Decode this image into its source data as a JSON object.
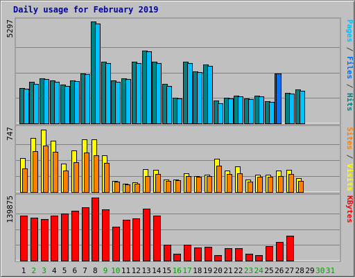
{
  "chart_data": {
    "type": "bar",
    "title": "Daily usage for February 2019",
    "days": [
      "1",
      "2",
      "3",
      "4",
      "5",
      "6",
      "7",
      "8",
      "9",
      "10",
      "11",
      "12",
      "13",
      "14",
      "15",
      "16",
      "17",
      "18",
      "19",
      "20",
      "21",
      "22",
      "23",
      "24",
      "25",
      "26",
      "27",
      "28",
      "29",
      "30",
      "31"
    ],
    "weekend_days": [
      "2",
      "3",
      "9",
      "10",
      "16",
      "17",
      "23",
      "24",
      "30",
      "31"
    ],
    "panels": [
      {
        "id": "top",
        "max_label": "5297",
        "ylim": [
          0,
          5297
        ],
        "right_label_parts": [
          "Pages",
          " / ",
          "Files",
          " / ",
          "Hits"
        ],
        "right_label_colors": [
          "#00c0ff",
          "#404040",
          "#0070ff",
          "#404040",
          "#008080"
        ],
        "series": [
          {
            "name": "Hits",
            "color": "#008080",
            "values": [
              1850,
              2150,
              2350,
              2250,
              2000,
              2250,
              2600,
              5300,
              3200,
              2250,
              2350,
              3200,
              3800,
              3200,
              2050,
              1350,
              3200,
              2700,
              3050,
              1200,
              1350,
              1450,
              1300,
              1450,
              1150,
              2600,
              1600,
              1750,
              0,
              0,
              0
            ]
          },
          {
            "name": "Files",
            "color": "#0070ff",
            "values": [
              0,
              0,
              0,
              0,
              0,
              0,
              0,
              0,
              0,
              0,
              0,
              0,
              0,
              0,
              0,
              0,
              0,
              0,
              0,
              0,
              0,
              0,
              0,
              0,
              0,
              2600,
              0,
              0,
              0,
              0,
              0
            ]
          },
          {
            "name": "Pages",
            "color": "#00c0ff",
            "values": [
              1800,
              2050,
              2300,
              2150,
              1950,
              2200,
              2550,
              5200,
              3150,
              2150,
              2300,
              3150,
              3750,
              3150,
              1950,
              1300,
              3150,
              2650,
              3000,
              1050,
              1300,
              1400,
              1250,
              1400,
              1100,
              0,
              1550,
              1700,
              0,
              0,
              0
            ]
          }
        ]
      },
      {
        "id": "middle",
        "max_label": "747",
        "ylim": [
          0,
          747
        ],
        "right_label_parts": [
          "Sites",
          " / ",
          "Visits"
        ],
        "right_label_colors": [
          "#ff8000",
          "#404040",
          "#ffff00"
        ],
        "series": [
          {
            "name": "Visits",
            "color": "#ffff00",
            "values": [
              400,
              630,
              730,
              600,
              330,
              490,
              620,
              620,
              430,
              130,
              100,
              110,
              270,
              260,
              150,
              150,
              220,
              190,
              200,
              390,
              250,
              300,
              150,
              200,
              200,
              250,
              260,
              160,
              0,
              0,
              0
            ]
          },
          {
            "name": "Sites",
            "color": "#ff8000",
            "values": [
              280,
              480,
              540,
              470,
              250,
              350,
              460,
              430,
              340,
              120,
              90,
              100,
              190,
              210,
              130,
              140,
              190,
              180,
              190,
              310,
              210,
              220,
              120,
              180,
              180,
              190,
              210,
              130,
              0,
              0,
              0
            ]
          }
        ]
      },
      {
        "id": "bottom",
        "max_label": "139875",
        "ylim": [
          0,
          139875
        ],
        "right_label_parts": [
          "KBytes"
        ],
        "right_label_colors": [
          "#ff0000"
        ],
        "series": [
          {
            "name": "KBytes",
            "color": "#ff0000",
            "values": [
              100000,
              95000,
              92000,
              100000,
              104000,
              110000,
              119000,
              139875,
              114000,
              75000,
              90000,
              94000,
              116000,
              100000,
              36000,
              15000,
              35000,
              29000,
              31000,
              13000,
              27000,
              27000,
              15000,
              13000,
              33000,
              42000,
              56000,
              0,
              0,
              0,
              0
            ]
          }
        ]
      }
    ]
  }
}
